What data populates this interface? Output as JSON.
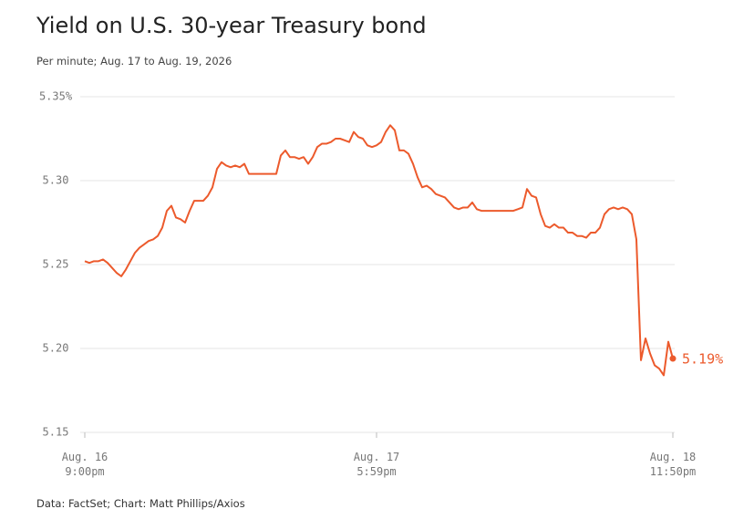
{
  "chart_data": {
    "type": "line",
    "title": "Yield on U.S. 30-year Treasury bond",
    "subtitle": "Per minute; Aug. 17 to Aug. 19, 2026",
    "source": "Data: FactSet; Chart: Matt Phillips/Axios",
    "color": "#ec5a2c",
    "categories": [
      "Aug. 16\n9:00pm",
      null,
      null,
      null,
      null,
      null,
      null,
      null,
      null,
      null,
      null,
      null,
      null,
      null,
      null,
      null,
      null,
      null,
      null,
      null,
      null,
      null,
      null,
      null,
      null,
      null,
      null,
      null,
      null,
      null,
      null,
      null,
      null,
      null,
      null,
      null,
      null,
      null,
      null,
      null,
      null,
      null,
      null,
      null,
      null,
      null,
      null,
      null,
      null,
      null,
      null,
      null,
      null,
      null,
      null,
      null,
      null,
      null,
      null,
      null,
      null,
      null,
      null,
      null,
      "Aug. 17\n5:59pm",
      null,
      null,
      null,
      null,
      null,
      null,
      null,
      null,
      null,
      null,
      null,
      null,
      null,
      null,
      null,
      null,
      null,
      null,
      null,
      null,
      null,
      null,
      null,
      null,
      null,
      null,
      null,
      null,
      null,
      null,
      null,
      null,
      null,
      null,
      null,
      null,
      null,
      null,
      null,
      null,
      null,
      null,
      null,
      null,
      null,
      null,
      null,
      null,
      null,
      null,
      null,
      null,
      null,
      null,
      null,
      null,
      null,
      null,
      null,
      null,
      null,
      null,
      null,
      null,
      "Aug. 18\n11:50pm"
    ],
    "values": [
      5.252,
      5.251,
      5.252,
      5.252,
      5.253,
      5.251,
      5.248,
      5.245,
      5.243,
      5.247,
      5.252,
      5.257,
      5.26,
      5.262,
      5.264,
      5.265,
      5.267,
      5.272,
      5.282,
      5.285,
      5.278,
      5.277,
      5.275,
      5.282,
      5.288,
      5.288,
      5.288,
      5.291,
      5.296,
      5.307,
      5.311,
      5.309,
      5.308,
      5.309,
      5.308,
      5.31,
      5.304,
      5.304,
      5.304,
      5.304,
      5.304,
      5.304,
      5.304,
      5.315,
      5.318,
      5.314,
      5.314,
      5.313,
      5.314,
      5.31,
      5.314,
      5.32,
      5.322,
      5.322,
      5.323,
      5.325,
      5.325,
      5.324,
      5.323,
      5.329,
      5.326,
      5.325,
      5.321,
      5.32,
      5.321,
      5.323,
      5.329,
      5.333,
      5.33,
      5.318,
      5.318,
      5.316,
      5.31,
      5.302,
      5.296,
      5.297,
      5.295,
      5.292,
      5.291,
      5.29,
      5.287,
      5.284,
      5.283,
      5.284,
      5.284,
      5.287,
      5.283,
      5.282,
      5.282,
      5.282,
      5.282,
      5.282,
      5.282,
      5.282,
      5.282,
      5.283,
      5.284,
      5.295,
      5.291,
      5.29,
      5.28,
      5.273,
      5.272,
      5.274,
      5.272,
      5.272,
      5.269,
      5.269,
      5.267,
      5.267,
      5.266,
      5.269,
      5.269,
      5.272,
      5.28,
      5.283,
      5.284,
      5.283,
      5.284,
      5.283,
      5.28,
      5.265,
      5.193,
      5.206,
      5.197,
      5.19,
      5.188,
      5.184,
      5.204,
      5.194
    ],
    "value_labels": [
      null,
      null,
      null,
      null,
      null,
      null,
      null,
      null,
      null,
      null,
      null,
      null,
      null,
      null,
      null,
      null,
      null,
      null,
      null,
      null,
      null,
      null,
      null,
      null,
      null,
      null,
      null,
      null,
      null,
      null,
      null,
      null,
      null,
      null,
      null,
      null,
      null,
      null,
      null,
      null,
      null,
      null,
      null,
      null,
      null,
      null,
      null,
      null,
      null,
      null,
      null,
      null,
      null,
      null,
      null,
      null,
      null,
      null,
      null,
      null,
      null,
      null,
      null,
      null,
      null,
      null,
      null,
      null,
      null,
      null,
      null,
      null,
      null,
      null,
      null,
      null,
      null,
      null,
      null,
      null,
      null,
      null,
      null,
      null,
      null,
      null,
      null,
      null,
      null,
      null,
      null,
      null,
      null,
      null,
      null,
      null,
      null,
      null,
      null,
      null,
      null,
      null,
      null,
      null,
      null,
      null,
      null,
      null,
      null,
      null,
      null,
      null,
      null,
      null,
      null,
      null,
      null,
      null,
      null,
      null,
      null,
      null,
      null,
      null,
      null,
      null,
      null,
      null,
      null,
      "5.19%"
    ],
    "ylim": [
      5.15,
      5.35
    ],
    "yticks": [
      5.15,
      {
        "value": 5.2,
        "label": "5.20"
      },
      5.25,
      {
        "value": 5.3,
        "label": "5.30"
      },
      {
        "value": 5.35,
        "label": "5.35%"
      }
    ],
    "grid": true
  }
}
